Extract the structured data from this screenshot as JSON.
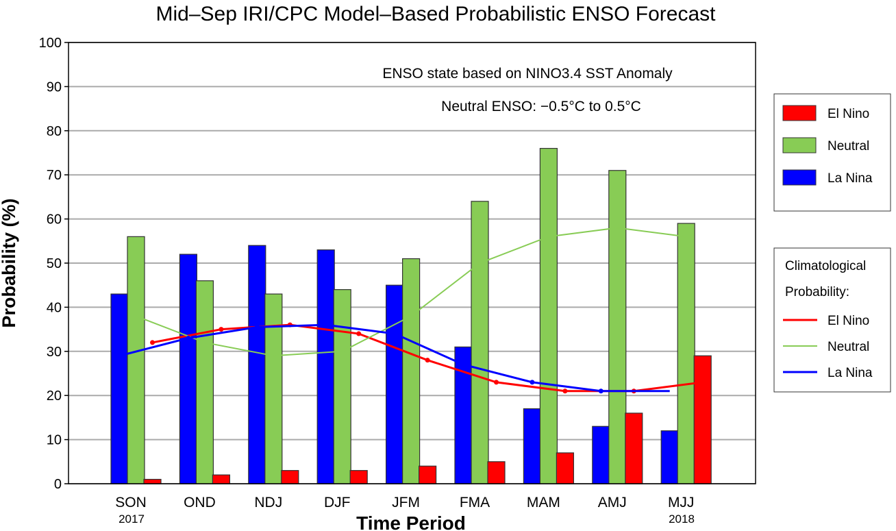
{
  "chart_data": {
    "type": "bar",
    "title": "Mid–Sep IRI/CPC Model–Based Probabilistic ENSO Forecast",
    "xlabel": "Time Period",
    "ylabel": "Probability (%)",
    "ylim": [
      0,
      100
    ],
    "yticks": [
      0,
      10,
      20,
      30,
      40,
      50,
      60,
      70,
      80,
      90,
      100
    ],
    "grid": true,
    "categories": [
      "SON",
      "OND",
      "NDJ",
      "DJF",
      "JFM",
      "FMA",
      "MAM",
      "AMJ",
      "MJJ"
    ],
    "year_labels": {
      "first": "2017",
      "last": "2018"
    },
    "annotations": [
      "ENSO state based on NINO3.4 SST Anomaly",
      "Neutral ENSO: −0.5°C to 0.5°C"
    ],
    "series": [
      {
        "name": "La Nina",
        "color": "#0000ff",
        "values": [
          43,
          52,
          54,
          53,
          45,
          31,
          17,
          13,
          12
        ]
      },
      {
        "name": "Neutral",
        "color": "#88cc55",
        "values": [
          56,
          46,
          43,
          44,
          51,
          64,
          76,
          71,
          59
        ]
      },
      {
        "name": "El Nino",
        "color": "#ff0000",
        "values": [
          1,
          2,
          3,
          3,
          4,
          5,
          7,
          16,
          29
        ]
      }
    ],
    "legend": {
      "position": "right",
      "entries": [
        "El Nino",
        "Neutral",
        "La Nina"
      ]
    },
    "climatology": {
      "title_lines": [
        "Climatological",
        "Probability:"
      ],
      "series": [
        {
          "name": "El Nino",
          "color": "#ff0000",
          "values": [
            32,
            35,
            36,
            34,
            28,
            23,
            21,
            21,
            23
          ]
        },
        {
          "name": "Neutral",
          "color": "#88cc55",
          "values": [
            38,
            32,
            29,
            30,
            38,
            50,
            56,
            58,
            56
          ]
        },
        {
          "name": "La Nina",
          "color": "#0000ff",
          "values": [
            29,
            33,
            35.5,
            36,
            34,
            27,
            23,
            21,
            21
          ]
        }
      ]
    }
  }
}
